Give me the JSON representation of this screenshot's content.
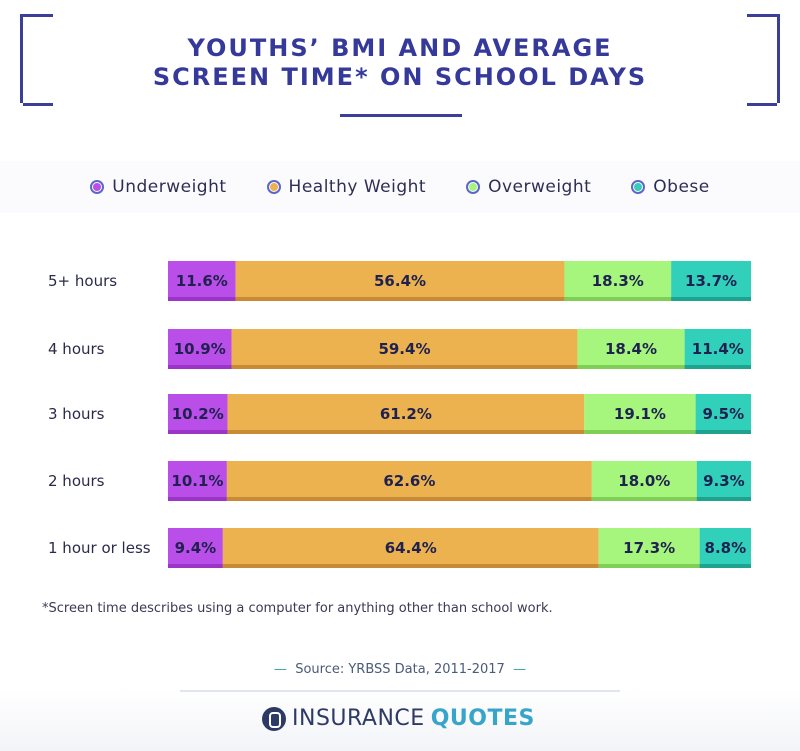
{
  "title_line1": "YOUTHS’ BMI AND AVERAGE",
  "title_line2": "SCREEN TIME* ON SCHOOL DAYS",
  "legend": [
    {
      "label": "Underweight",
      "color": "#b94ee8"
    },
    {
      "label": "Healthy Weight",
      "color": "#ebb24f"
    },
    {
      "label": "Overweight",
      "color": "#a6f57c"
    },
    {
      "label": "Obese",
      "color": "#31d0ba"
    }
  ],
  "chart_data": {
    "type": "bar",
    "orientation": "horizontal",
    "stacked": true,
    "normalized": true,
    "categories": [
      "5+ hours",
      "4 hours",
      "3 hours",
      "2 hours",
      "1 hour or less"
    ],
    "series": [
      {
        "name": "Underweight",
        "color": "#b94ee8",
        "shade": "#9a35c8",
        "values": [
          11.6,
          10.9,
          10.2,
          10.1,
          9.4
        ],
        "labels": [
          "11.6%",
          "10.9%",
          "10.2%",
          "10.1%",
          "9.4%"
        ]
      },
      {
        "name": "Healthy Weight",
        "color": "#ebb24f",
        "shade": "#c98a36",
        "values": [
          56.4,
          59.4,
          61.2,
          62.6,
          64.4
        ],
        "labels": [
          "56.4%",
          "59.4%",
          "61.2%",
          "62.6%",
          "64.4%"
        ]
      },
      {
        "name": "Overweight",
        "color": "#a6f57c",
        "shade": "#7fcf57",
        "values": [
          18.3,
          18.4,
          19.1,
          18.0,
          17.3
        ],
        "labels": [
          "18.3%",
          "18.4%",
          "19.1%",
          "18.0%",
          "17.3%"
        ]
      },
      {
        "name": "Obese",
        "color": "#31d0ba",
        "shade": "#1fa38e",
        "values": [
          13.7,
          11.4,
          9.5,
          9.3,
          8.8
        ],
        "labels": [
          "13.7%",
          "11.4%",
          "9.5%",
          "9.3%",
          "8.8%"
        ]
      }
    ]
  },
  "footnote": "*Screen time describes using a computer for anything other than school work.",
  "source": "Source: YRBSS Data, 2011-2017",
  "source_dash": "—",
  "logo": {
    "part1": "INSURANCE",
    "part2": "QUOTES"
  }
}
